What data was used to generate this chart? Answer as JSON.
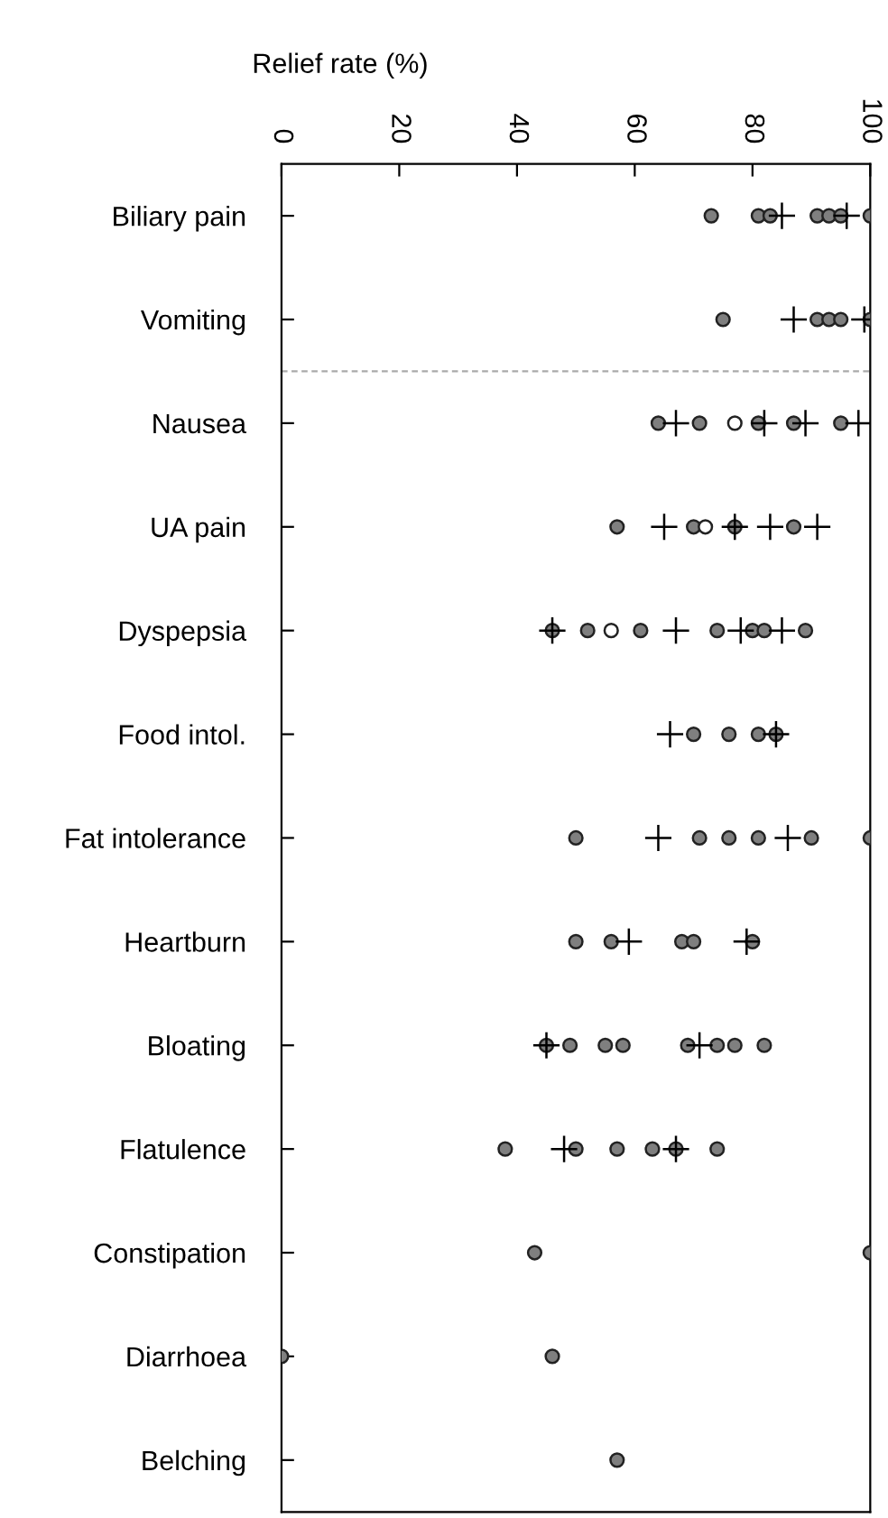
{
  "chart_data": {
    "type": "scatter",
    "orientation": "horizontal",
    "xlabel": "Relief rate (%)",
    "categories": [
      "Biliary pain",
      "Vomiting",
      "Nausea",
      "UA pain",
      "Dyspepsia",
      "Food intol.",
      "Fat intolerance",
      "Heartburn",
      "Bloating",
      "Flatulence",
      "Constipation",
      "Diarrhoea",
      "Belching"
    ],
    "xlim": [
      0,
      100
    ],
    "xticks": [
      0,
      20,
      40,
      60,
      80,
      100
    ],
    "grid": false,
    "legend": false,
    "series": [
      {
        "color": "#7f7f7f",
        "marker": "circle",
        "x": [
          "Biliary pain",
          "Biliary pain",
          "Biliary pain",
          "Biliary pain",
          "Biliary pain",
          "Biliary pain",
          "Biliary pain",
          "Vomiting",
          "Vomiting",
          "Vomiting",
          "Vomiting",
          "Vomiting",
          "Nausea",
          "Nausea",
          "Nausea",
          "Nausea",
          "Nausea",
          "UA pain",
          "UA pain",
          "UA pain",
          "UA pain",
          "Dyspepsia",
          "Dyspepsia",
          "Dyspepsia",
          "Dyspepsia",
          "Dyspepsia",
          "Dyspepsia",
          "Dyspepsia",
          "Food intol.",
          "Food intol.",
          "Food intol.",
          "Food intol.",
          "Fat intolerance",
          "Fat intolerance",
          "Fat intolerance",
          "Fat intolerance",
          "Fat intolerance",
          "Fat intolerance",
          "Heartburn",
          "Heartburn",
          "Heartburn",
          "Heartburn",
          "Heartburn",
          "Bloating",
          "Bloating",
          "Bloating",
          "Bloating",
          "Bloating",
          "Bloating",
          "Bloating",
          "Bloating",
          "Flatulence",
          "Flatulence",
          "Flatulence",
          "Flatulence",
          "Flatulence",
          "Flatulence",
          "Constipation",
          "Constipation",
          "Diarrhoea",
          "Diarrhoea",
          "Belching"
        ],
        "values": [
          73,
          81,
          83,
          91,
          93,
          95,
          100,
          75,
          91,
          93,
          95,
          100,
          64,
          71,
          81,
          87,
          95,
          57,
          70,
          77,
          87,
          46,
          52,
          61,
          74,
          80,
          82,
          89,
          70,
          76,
          81,
          84,
          50,
          71,
          76,
          81,
          90,
          100,
          50,
          56,
          68,
          70,
          80,
          45,
          49,
          55,
          58,
          69,
          74,
          77,
          82,
          38,
          50,
          57,
          63,
          67,
          74,
          43,
          100,
          0,
          46,
          57
        ]
      },
      {
        "color": "#000000",
        "marker": "cross",
        "x": [
          "Biliary pain",
          "Biliary pain",
          "Vomiting",
          "Vomiting",
          "Nausea",
          "Nausea",
          "Nausea",
          "Nausea",
          "UA pain",
          "UA pain",
          "UA pain",
          "UA pain",
          "Dyspepsia",
          "Dyspepsia",
          "Dyspepsia",
          "Dyspepsia",
          "Food intol.",
          "Food intol.",
          "Fat intolerance",
          "Fat intolerance",
          "Heartburn",
          "Heartburn",
          "Bloating",
          "Bloating",
          "Flatulence",
          "Flatulence"
        ],
        "values": [
          85,
          96,
          87,
          99,
          67,
          82,
          89,
          98,
          65,
          77,
          83,
          91,
          46,
          67,
          78,
          85,
          66,
          84,
          64,
          86,
          59,
          79,
          45,
          71,
          48,
          67
        ]
      },
      {
        "color": "#ffffff",
        "marker": "circle",
        "x": [
          "Nausea",
          "UA pain",
          "Dyspepsia"
        ],
        "values": [
          77,
          72,
          56
        ]
      }
    ]
  }
}
